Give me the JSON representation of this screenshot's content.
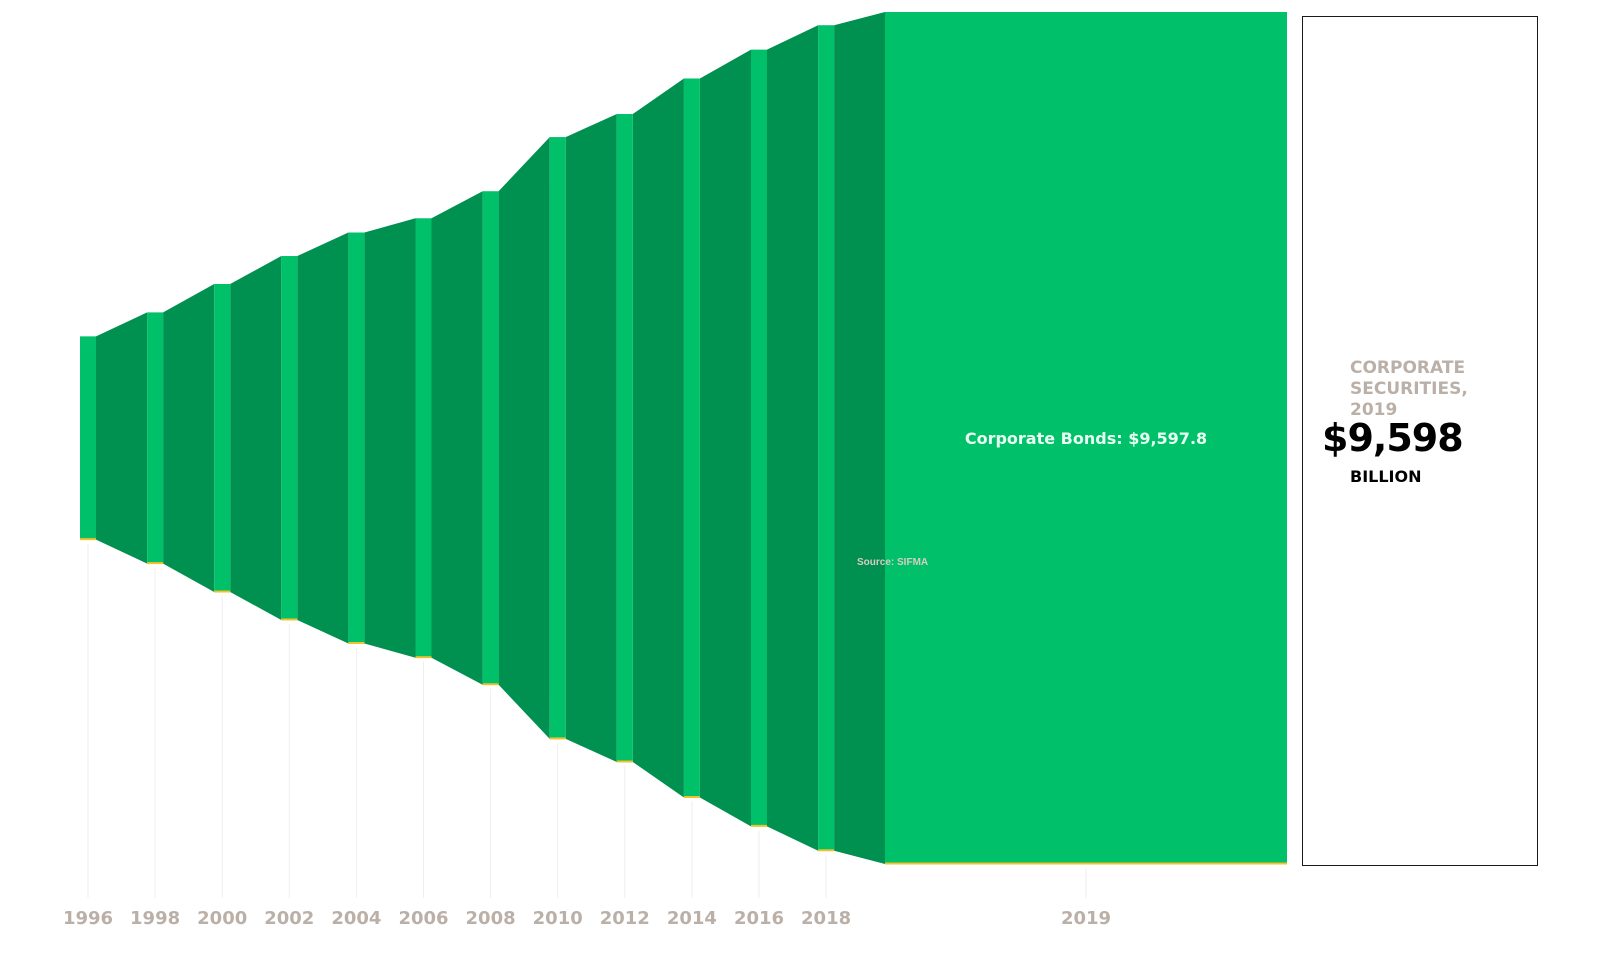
{
  "chart_data": {
    "type": "area",
    "title": "",
    "xlabel": "",
    "ylabel": "",
    "x": [
      "1996",
      "1998",
      "2000",
      "2002",
      "2004",
      "2006",
      "2008",
      "2010",
      "2012",
      "2014",
      "2016",
      "2018",
      "2019"
    ],
    "series": [
      {
        "name": "Corporate Bonds",
        "values": [
          2290,
          2830,
          3470,
          4100,
          4630,
          4950,
          5560,
          6780,
          7300,
          8100,
          8750,
          9300,
          9597.8
        ]
      }
    ],
    "highlight": {
      "category": "2019",
      "label": "Corporate Bonds: $9,597.8"
    },
    "source": "Source: SIFMA",
    "colors": {
      "bar": "#00c16a",
      "band": "#00904f",
      "baseline_accent": "#f2c12e",
      "tick_text": "#bbb0a8"
    },
    "grid": false
  },
  "summary": {
    "title": "CORPORATE SECURITIES, 2019",
    "value": "$9,598",
    "unit": "BILLION"
  }
}
